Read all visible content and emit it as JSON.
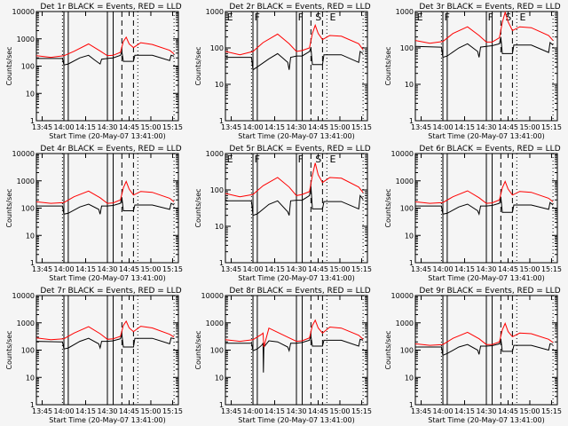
{
  "figure": {
    "xlabel": "Start Time (20-May-07 13:41:00)",
    "ylabel": "Counts/sec",
    "x_tick_labels": [
      "13:45",
      "14:00",
      "14:15",
      "14:30",
      "14:45",
      "15:00",
      "15:15"
    ],
    "x_tick_minutes": [
      4,
      19,
      34,
      49,
      64,
      79,
      94
    ],
    "x_range_minutes": [
      0,
      98
    ],
    "series_colors": {
      "events": "#000000",
      "lld": "#ff0000"
    },
    "markers": {
      "solid_lines_min": [
        19,
        22,
        49,
        53
      ],
      "dashed_lines_min": [
        59,
        67
      ],
      "dotted_lines_min": [
        18,
        70,
        95
      ],
      "marker_labels": [
        {
          "text": "E",
          "min": 1
        },
        {
          "text": "F",
          "min": 20
        },
        {
          "text": "F",
          "min": 50
        },
        {
          "text": "S",
          "min": 62
        },
        {
          "text": "E",
          "min": 72
        }
      ]
    }
  },
  "chart_data": [
    {
      "type": "line",
      "title": "Det 1r BLACK = Events, RED = LLD",
      "ylim": [
        1,
        10000
      ],
      "yscale": "log",
      "y_tick_labels": [
        "1",
        "10",
        "100",
        "1000",
        "10000"
      ],
      "show_marker_labels": false,
      "series": [
        {
          "name": "Events",
          "x": [
            0,
            17,
            18,
            19,
            22,
            30,
            36,
            40,
            44,
            45,
            49,
            53,
            58,
            59,
            60,
            61,
            67,
            68,
            80,
            92,
            93,
            95
          ],
          "y": [
            190,
            190,
            190,
            110,
            120,
            200,
            250,
            170,
            120,
            180,
            190,
            200,
            250,
            340,
            150,
            150,
            150,
            250,
            250,
            160,
            250,
            230
          ]
        },
        {
          "name": "LLD",
          "x": [
            0,
            10,
            19,
            26,
            36,
            44,
            49,
            53,
            58,
            60,
            62,
            64,
            67,
            72,
            80,
            92,
            95
          ],
          "y": [
            240,
            210,
            240,
            350,
            650,
            360,
            240,
            250,
            320,
            800,
            1150,
            650,
            480,
            720,
            620,
            380,
            280
          ]
        }
      ]
    },
    {
      "type": "line",
      "title": "Det 2r BLACK = Events, RED = LLD",
      "ylim": [
        1,
        1000
      ],
      "yscale": "log",
      "y_tick_labels": [
        "1",
        "10",
        "100",
        "1000"
      ],
      "show_marker_labels": true,
      "series": [
        {
          "name": "Events",
          "x": [
            0,
            1,
            17,
            18,
            19,
            22,
            30,
            36,
            43,
            44,
            45,
            49,
            53,
            58,
            59,
            60,
            61,
            67,
            68,
            80,
            92,
            93,
            95
          ],
          "y": [
            60,
            55,
            55,
            55,
            25,
            30,
            50,
            70,
            40,
            25,
            55,
            60,
            60,
            80,
            100,
            35,
            35,
            35,
            65,
            65,
            40,
            80,
            70
          ]
        },
        {
          "name": "LLD",
          "x": [
            0,
            10,
            19,
            26,
            36,
            44,
            49,
            53,
            58,
            60,
            62,
            64,
            67,
            72,
            80,
            92,
            95
          ],
          "y": [
            80,
            65,
            80,
            140,
            240,
            130,
            80,
            85,
            100,
            250,
            420,
            250,
            170,
            220,
            210,
            130,
            90
          ]
        }
      ]
    },
    {
      "type": "line",
      "title": "Det 3r BLACK = Events, RED = LLD",
      "ylim": [
        1,
        1000
      ],
      "yscale": "log",
      "y_tick_labels": [
        "1",
        "10",
        "100",
        "1000"
      ],
      "show_marker_labels": true,
      "series": [
        {
          "name": "Events",
          "x": [
            0,
            17,
            18,
            19,
            22,
            30,
            36,
            43,
            44,
            45,
            49,
            53,
            58,
            59,
            60,
            61,
            67,
            68,
            80,
            92,
            93,
            95
          ],
          "y": [
            110,
            105,
            105,
            55,
            60,
            100,
            130,
            80,
            55,
            105,
            110,
            115,
            130,
            200,
            70,
            70,
            70,
            120,
            120,
            75,
            140,
            120
          ]
        },
        {
          "name": "LLD",
          "x": [
            0,
            10,
            19,
            26,
            36,
            44,
            49,
            53,
            58,
            60,
            62,
            64,
            67,
            72,
            80,
            92,
            95
          ],
          "y": [
            160,
            135,
            150,
            250,
            380,
            220,
            145,
            145,
            190,
            500,
            950,
            520,
            300,
            380,
            360,
            220,
            160
          ]
        }
      ]
    },
    {
      "type": "line",
      "title": "Det 4r BLACK = Events, RED = LLD",
      "ylim": [
        1,
        10000
      ],
      "yscale": "log",
      "y_tick_labels": [
        "1",
        "10",
        "100",
        "1000",
        "10000"
      ],
      "show_marker_labels": false,
      "series": [
        {
          "name": "Events",
          "x": [
            0,
            17,
            18,
            19,
            22,
            30,
            36,
            43,
            44,
            45,
            49,
            53,
            58,
            59,
            60,
            61,
            67,
            68,
            80,
            92,
            93,
            95
          ],
          "y": [
            120,
            120,
            120,
            60,
            65,
            110,
            140,
            90,
            60,
            120,
            120,
            125,
            150,
            250,
            80,
            80,
            80,
            130,
            130,
            90,
            150,
            130
          ]
        },
        {
          "name": "LLD",
          "x": [
            0,
            10,
            19,
            26,
            36,
            44,
            49,
            53,
            58,
            60,
            62,
            64,
            67,
            72,
            80,
            92,
            95
          ],
          "y": [
            170,
            150,
            160,
            260,
            420,
            240,
            150,
            155,
            200,
            550,
            950,
            500,
            300,
            410,
            380,
            230,
            170
          ]
        }
      ]
    },
    {
      "type": "line",
      "title": "Det 5r BLACK = Events, RED = LLD",
      "ylim": [
        1,
        1000
      ],
      "yscale": "log",
      "y_tick_labels": [
        "1",
        "10",
        "100",
        "1000"
      ],
      "show_marker_labels": true,
      "series": [
        {
          "name": "Events",
          "x": [
            0,
            1,
            17,
            18,
            19,
            22,
            30,
            36,
            43,
            44,
            45,
            49,
            53,
            58,
            59,
            60,
            61,
            67,
            68,
            80,
            92,
            93,
            95
          ],
          "y": [
            55,
            50,
            50,
            48,
            20,
            22,
            40,
            50,
            25,
            20,
            50,
            52,
            52,
            70,
            130,
            30,
            30,
            30,
            48,
            48,
            30,
            70,
            55
          ]
        },
        {
          "name": "LLD",
          "x": [
            0,
            10,
            19,
            26,
            36,
            44,
            49,
            53,
            58,
            60,
            62,
            64,
            67,
            72,
            80,
            92,
            95
          ],
          "y": [
            80,
            65,
            75,
            130,
            220,
            120,
            70,
            75,
            90,
            250,
            550,
            260,
            160,
            220,
            210,
            120,
            85
          ]
        }
      ]
    },
    {
      "type": "line",
      "title": "Det 6r BLACK = Events, RED = LLD",
      "ylim": [
        1,
        10000
      ],
      "yscale": "log",
      "y_tick_labels": [
        "1",
        "10",
        "100",
        "1000",
        "10000"
      ],
      "show_marker_labels": false,
      "series": [
        {
          "name": "Events",
          "x": [
            0,
            17,
            18,
            19,
            22,
            30,
            36,
            43,
            44,
            45,
            49,
            53,
            58,
            59,
            60,
            61,
            67,
            68,
            80,
            92,
            93,
            95
          ],
          "y": [
            120,
            120,
            120,
            60,
            65,
            110,
            140,
            80,
            60,
            120,
            120,
            125,
            150,
            260,
            70,
            70,
            70,
            130,
            130,
            90,
            160,
            130
          ]
        },
        {
          "name": "LLD",
          "x": [
            0,
            10,
            19,
            26,
            36,
            44,
            49,
            53,
            58,
            60,
            62,
            64,
            67,
            72,
            80,
            92,
            95
          ],
          "y": [
            170,
            150,
            160,
            260,
            430,
            240,
            150,
            155,
            200,
            550,
            950,
            500,
            300,
            410,
            380,
            230,
            170
          ]
        }
      ]
    },
    {
      "type": "line",
      "title": "Det 7r BLACK = Events, RED = LLD",
      "ylim": [
        1,
        10000
      ],
      "yscale": "log",
      "y_tick_labels": [
        "1",
        "10",
        "100",
        "1000",
        "10000"
      ],
      "show_marker_labels": false,
      "series": [
        {
          "name": "Events",
          "x": [
            0,
            17,
            18,
            19,
            22,
            30,
            36,
            43,
            44,
            45,
            49,
            53,
            58,
            59,
            60,
            61,
            67,
            68,
            80,
            92,
            93,
            95
          ],
          "y": [
            210,
            200,
            200,
            110,
            120,
            210,
            270,
            170,
            120,
            210,
            210,
            220,
            260,
            380,
            130,
            130,
            130,
            270,
            270,
            170,
            280,
            260
          ]
        },
        {
          "name": "LLD",
          "x": [
            0,
            10,
            19,
            26,
            36,
            44,
            49,
            53,
            58,
            60,
            62,
            64,
            67,
            72,
            80,
            92,
            95
          ],
          "y": [
            280,
            240,
            260,
            420,
            720,
            400,
            250,
            260,
            320,
            800,
            1150,
            650,
            480,
            750,
            650,
            380,
            300
          ]
        }
      ]
    },
    {
      "type": "line",
      "title": "Det 8r BLACK = Events, RED = LLD",
      "ylim": [
        1,
        10000
      ],
      "yscale": "log",
      "y_tick_labels": [
        "1",
        "10",
        "100",
        "1000",
        "10000"
      ],
      "show_marker_labels": false,
      "series": [
        {
          "name": "Events",
          "x": [
            0,
            17,
            18,
            19,
            22,
            25,
            26,
            26.2,
            26.5,
            30,
            36,
            43,
            44,
            45,
            49,
            53,
            58,
            59,
            60,
            61,
            67,
            68,
            80,
            92,
            93,
            95
          ],
          "y": [
            180,
            180,
            180,
            95,
            110,
            150,
            180,
            15,
            130,
            220,
            200,
            130,
            95,
            180,
            180,
            190,
            230,
            330,
            140,
            140,
            140,
            230,
            230,
            140,
            250,
            230
          ]
        },
        {
          "name": "LLD",
          "x": [
            0,
            10,
            19,
            25,
            26,
            26.5,
            30,
            36,
            44,
            49,
            53,
            58,
            60,
            62,
            64,
            67,
            72,
            80,
            92,
            95
          ],
          "y": [
            240,
            210,
            240,
            380,
            420,
            130,
            640,
            450,
            280,
            210,
            220,
            280,
            800,
            1250,
            650,
            420,
            700,
            640,
            350,
            250
          ]
        }
      ]
    },
    {
      "type": "line",
      "title": "Det 9r BLACK = Events, RED = LLD",
      "ylim": [
        1,
        10000
      ],
      "yscale": "log",
      "y_tick_labels": [
        "1",
        "10",
        "100",
        "1000",
        "10000"
      ],
      "show_marker_labels": false,
      "series": [
        {
          "name": "Events",
          "x": [
            0,
            17,
            18,
            19,
            22,
            30,
            36,
            43,
            44,
            45,
            49,
            53,
            58,
            59,
            60,
            61,
            67,
            68,
            80,
            92,
            93,
            95
          ],
          "y": [
            130,
            130,
            130,
            65,
            75,
            130,
            160,
            100,
            70,
            140,
            140,
            145,
            170,
            260,
            90,
            90,
            90,
            150,
            150,
            100,
            170,
            160
          ]
        },
        {
          "name": "LLD",
          "x": [
            0,
            10,
            19,
            26,
            36,
            44,
            49,
            53,
            58,
            60,
            62,
            64,
            67,
            72,
            80,
            92,
            95
          ],
          "y": [
            170,
            150,
            160,
            270,
            450,
            260,
            160,
            160,
            200,
            550,
            950,
            480,
            310,
            420,
            400,
            250,
            190
          ]
        }
      ]
    }
  ]
}
